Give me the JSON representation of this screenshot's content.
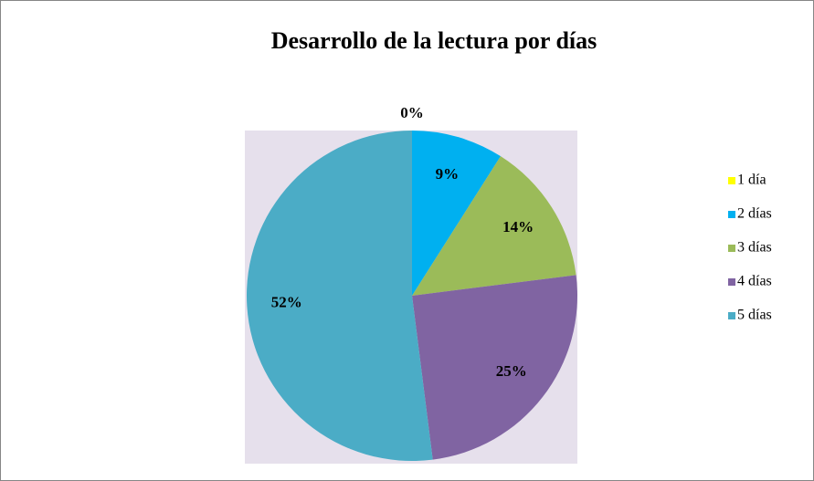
{
  "chart_data": {
    "type": "pie",
    "title": "Desarrollo de la lectura por días",
    "categories": [
      "1 día",
      "2 días",
      "3 días",
      "4 días",
      "5 días"
    ],
    "values": [
      0,
      9,
      14,
      25,
      52
    ],
    "value_labels": [
      "0%",
      "9%",
      "14%",
      "25%",
      "52%"
    ],
    "colors": [
      "#ffff00",
      "#00b0f0",
      "#9bbb59",
      "#8064a2",
      "#4bacc6"
    ],
    "legend": "right"
  }
}
